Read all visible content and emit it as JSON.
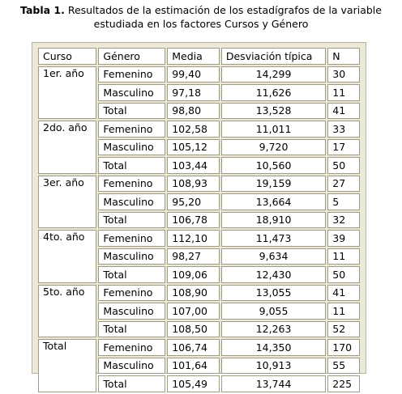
{
  "caption": {
    "label": "Tabla 1.",
    "text": " Resultados de la estimación de los estadígrafos de la variable estudiada en los factores Cursos y Género"
  },
  "table": {
    "headers": [
      "Curso",
      "Género",
      "Media",
      "Desviación típica",
      "N"
    ],
    "groups": [
      {
        "curso": "1er. año",
        "rows": [
          {
            "genero": "Femenino",
            "media": "99,40",
            "desv": "14,299",
            "n": "30"
          },
          {
            "genero": "Masculino",
            "media": "97,18",
            "desv": "11,626",
            "n": "11"
          },
          {
            "genero": "Total",
            "media": "98,80",
            "desv": "13,528",
            "n": "41"
          }
        ]
      },
      {
        "curso": "2do. año",
        "rows": [
          {
            "genero": "Femenino",
            "media": "102,58",
            "desv": "11,011",
            "n": "33"
          },
          {
            "genero": "Masculino",
            "media": "105,12",
            "desv": "9,720",
            "n": "17"
          },
          {
            "genero": "Total",
            "media": "103,44",
            "desv": "10,560",
            "n": "50"
          }
        ]
      },
      {
        "curso": "3er. año",
        "rows": [
          {
            "genero": "Femenino",
            "media": "108,93",
            "desv": "19,159",
            "n": "27"
          },
          {
            "genero": "Masculino",
            "media": "95,20",
            "desv": "13,664",
            "n": "5"
          },
          {
            "genero": "Total",
            "media": "106,78",
            "desv": "18,910",
            "n": "32"
          }
        ]
      },
      {
        "curso": "4to. año",
        "rows": [
          {
            "genero": "Femenino",
            "media": "112,10",
            "desv": "11,473",
            "n": "39"
          },
          {
            "genero": "Masculino",
            "media": "98,27",
            "desv": "9,634",
            "n": "11"
          },
          {
            "genero": "Total",
            "media": "109,06",
            "desv": "12,430",
            "n": "50"
          }
        ]
      },
      {
        "curso": "5to. año",
        "rows": [
          {
            "genero": "Femenino",
            "media": "108,90",
            "desv": "13,055",
            "n": "41"
          },
          {
            "genero": "Masculino",
            "media": "107,00",
            "desv": "9,055",
            "n": "11"
          },
          {
            "genero": "Total",
            "media": "108,50",
            "desv": "12,263",
            "n": "52"
          }
        ]
      },
      {
        "curso": "Total",
        "rows": [
          {
            "genero": "Femenino",
            "media": "106,74",
            "desv": "14,350",
            "n": "170"
          },
          {
            "genero": "Masculino",
            "media": "101,64",
            "desv": "10,913",
            "n": "55"
          },
          {
            "genero": "Total",
            "media": "105,49",
            "desv": "13,744",
            "n": "225"
          }
        ]
      }
    ]
  }
}
